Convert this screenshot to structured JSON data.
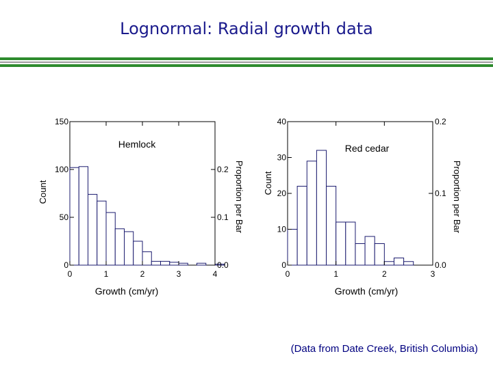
{
  "slide": {
    "title": "Lognormal: Radial growth data",
    "credit": "(Data from Date Creek, British Columbia)"
  },
  "colors": {
    "title": "#1a1a8c",
    "rule_green": "#2e8b2e",
    "rule_gray": "#9a9a9a",
    "bar_stroke": "#1a1a6e",
    "axis": "#000000"
  },
  "chart_data": [
    {
      "type": "bar",
      "title": "Hemlock",
      "xlabel": "Growth (cm/yr)",
      "ylabel": "Count",
      "y2label": "Proportion per Bar",
      "xlim": [
        0,
        4
      ],
      "ylim": [
        0,
        150
      ],
      "y2lim": [
        0,
        0.3
      ],
      "bin_width": 0.25,
      "bin_start": 0,
      "counts": [
        102,
        103,
        74,
        67,
        55,
        38,
        35,
        25,
        14,
        4,
        4,
        3,
        2,
        0,
        2,
        0,
        1,
        0
      ],
      "x_ticks": [
        "0",
        "1",
        "2",
        "3",
        "4"
      ],
      "x_tick_values": [
        0,
        1,
        2,
        3,
        4
      ],
      "y_ticks": [
        "0",
        "50",
        "100",
        "150"
      ],
      "y_tick_values": [
        0,
        50,
        100,
        150
      ],
      "y2_ticks": [
        "0.0",
        "0.1",
        "0.2"
      ],
      "y2_tick_values": [
        0,
        0.1,
        0.2
      ]
    },
    {
      "type": "bar",
      "title": "Red cedar",
      "xlabel": "Growth (cm/yr)",
      "ylabel": "Count",
      "y2label": "Proportion per Bar",
      "xlim": [
        0,
        3
      ],
      "ylim": [
        0,
        40
      ],
      "y2lim": [
        0,
        0.2
      ],
      "bin_width": 0.2,
      "bin_start": 0,
      "counts": [
        10,
        22,
        29,
        32,
        22,
        12,
        12,
        6,
        8,
        6,
        1,
        2,
        1,
        0
      ],
      "bin_counts_from_0.6": [],
      "x_ticks": [
        "0",
        "1",
        "2",
        "3"
      ],
      "x_tick_values": [
        0,
        1,
        2,
        3
      ],
      "y_ticks": [
        "0",
        "10",
        "20",
        "30",
        "40"
      ],
      "y_tick_values": [
        0,
        10,
        20,
        30,
        40
      ],
      "y2_ticks": [
        "0.0",
        "0.1",
        "0.2"
      ],
      "y2_tick_values": [
        0,
        0.1,
        0.2
      ]
    }
  ]
}
